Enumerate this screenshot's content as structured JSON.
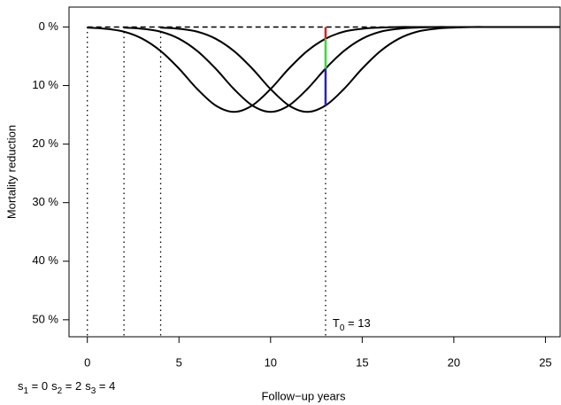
{
  "chart_data": {
    "type": "line",
    "x_label": "Follow−up years",
    "y_label": "Mortality reduction",
    "xlim": [
      -1,
      25.8
    ],
    "ylim": [
      -3.4,
      52.9
    ],
    "y_inverted": true,
    "xticks": [
      0,
      5,
      10,
      15,
      20,
      25
    ],
    "yticks": [
      {
        "value": 0,
        "label": "0 %"
      },
      {
        "value": 10,
        "label": "10 %"
      },
      {
        "value": 20,
        "label": "20 %"
      },
      {
        "value": 30,
        "label": "30 %"
      },
      {
        "value": 40,
        "label": "40 %"
      },
      {
        "value": 50,
        "label": "50 %"
      }
    ],
    "series": [
      {
        "color": "#000000",
        "x": [
          0,
          1,
          2,
          3,
          4,
          5,
          6,
          7,
          8,
          9,
          10,
          11,
          12,
          13,
          14,
          15,
          16,
          17,
          18,
          19,
          20,
          21,
          22,
          23,
          24,
          25,
          26
        ],
        "values": [
          0.1,
          0.3,
          0.8,
          2.0,
          4.1,
          7.1,
          10.6,
          13.4,
          14.5,
          13.4,
          10.6,
          7.1,
          4.1,
          2.0,
          0.8,
          0.3,
          0.1,
          0,
          0,
          0,
          0,
          0,
          0,
          0,
          0,
          0,
          0
        ]
      },
      {
        "color": "#000000",
        "x": [
          2,
          3,
          4,
          5,
          6,
          7,
          8,
          9,
          10,
          11,
          12,
          13,
          14,
          15,
          16,
          17,
          18,
          19,
          20,
          21,
          22,
          23,
          24,
          25,
          26
        ],
        "values": [
          0.1,
          0.3,
          0.8,
          2.0,
          4.1,
          7.1,
          10.6,
          13.4,
          14.5,
          13.4,
          10.6,
          7.1,
          4.1,
          2.0,
          0.8,
          0.3,
          0.1,
          0,
          0,
          0,
          0,
          0,
          0,
          0,
          0
        ]
      },
      {
        "color": "#000000",
        "x": [
          4,
          5,
          6,
          7,
          8,
          9,
          10,
          11,
          12,
          13,
          14,
          15,
          16,
          17,
          18,
          19,
          20,
          21,
          22,
          23,
          24,
          25,
          26
        ],
        "values": [
          0.1,
          0.3,
          0.8,
          2.0,
          4.1,
          7.1,
          10.6,
          13.4,
          14.5,
          13.4,
          10.6,
          7.1,
          4.1,
          2.0,
          0.8,
          0.3,
          0.1,
          0,
          0,
          0,
          0,
          0,
          0
        ]
      }
    ],
    "reference_line": {
      "y": 0,
      "x": [
        0,
        26
      ]
    },
    "starts": [
      0,
      2,
      4
    ],
    "t0": 13,
    "segments": [
      {
        "color": "#e41a1c",
        "from": 0,
        "to": 2.0
      },
      {
        "color": "#33dd33",
        "from": 2.0,
        "to": 7.1
      },
      {
        "color": "#2222cc",
        "from": 7.1,
        "to": 13.4
      }
    ],
    "s_labels": [
      {
        "symbol": "s",
        "sub": "1",
        "rest": " = 0"
      },
      {
        "symbol": "s",
        "sub": "2",
        "rest": " = 2"
      },
      {
        "symbol": "s",
        "sub": "3",
        "rest": " = 4"
      }
    ],
    "t0_label": {
      "symbol": "T",
      "sub": "0",
      "rest": " = 13"
    }
  }
}
